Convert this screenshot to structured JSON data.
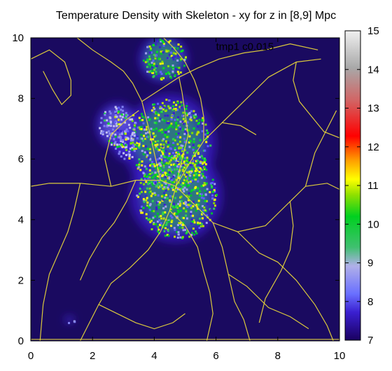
{
  "chart_data": {
    "type": "heatmap",
    "title": "Temperature Density with Skeleton - xy for z in [8,9] Mpc",
    "xlabel": "",
    "ylabel": "",
    "xlim": [
      0,
      10
    ],
    "ylim": [
      0,
      10
    ],
    "x_ticks": [
      "0",
      "2",
      "4",
      "6",
      "8",
      "10"
    ],
    "y_ticks": [
      "0",
      "2",
      "4",
      "6",
      "8",
      "10"
    ],
    "colorbar": {
      "range": [
        7,
        15
      ],
      "ticks": [
        "7",
        "8",
        "9",
        "10",
        "11",
        "12",
        "13",
        "14",
        "15"
      ],
      "colors": [
        "#1a0060",
        "#3a1fd0",
        "#6a70ff",
        "#a0a0f0",
        "#40d060",
        "#00d020",
        "#80e000",
        "#ffff00",
        "#ffa000",
        "#ff0000",
        "#d06060",
        "#a0a0a0",
        "#e0e0e0"
      ]
    },
    "annotation": "tmp1 c0.015",
    "background_color": "#1a0a60",
    "skeleton_color": "#e6d43a",
    "density_regions": [
      {
        "name": "main_filament_upper",
        "x": [
          3.2,
          5.8
        ],
        "y": [
          5.0,
          8.0
        ],
        "level": 10
      },
      {
        "name": "main_filament_lower",
        "x": [
          3.4,
          6.0
        ],
        "y": [
          3.4,
          6.2
        ],
        "level": 10
      },
      {
        "name": "top_blob",
        "x": [
          3.6,
          5.0
        ],
        "y": [
          8.6,
          10.0
        ],
        "level": 9.6
      },
      {
        "name": "left_lobe_upper",
        "x": [
          2.2,
          3.4
        ],
        "y": [
          6.4,
          7.8
        ],
        "level": 8.4
      },
      {
        "name": "left_lobe_lower",
        "x": [
          2.7,
          3.4
        ],
        "y": [
          6.0,
          7.0
        ],
        "level": 8.2
      },
      {
        "name": "small_spot",
        "x": [
          1.1,
          1.4
        ],
        "y": [
          0.6,
          0.8
        ],
        "level": 8.0
      }
    ]
  }
}
